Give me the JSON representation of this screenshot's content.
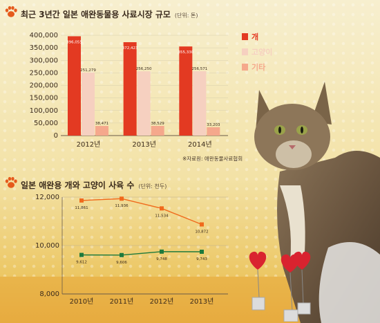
{
  "chart_data": [
    {
      "type": "bar",
      "title": "최근 3년간 일본 애완동물용 사료시장 규모",
      "unit": "(단위: 톤)",
      "categories": [
        "2012년",
        "2013년",
        "2014년"
      ],
      "series": [
        {
          "name": "개",
          "color": "#e33a22",
          "values": [
            396055,
            372423,
            355330
          ],
          "labels": [
            "396,055",
            "372,423",
            "355,330"
          ]
        },
        {
          "name": "고양이",
          "color": "#f6d0c0",
          "values": [
            251279,
            256250,
            256571
          ],
          "labels": [
            "251,279",
            "256,250",
            "256,571"
          ]
        },
        {
          "name": "기타",
          "color": "#f5a88c",
          "values": [
            38471,
            38529,
            33203
          ],
          "labels": [
            "38,471",
            "38,529",
            "33,203"
          ]
        }
      ],
      "yticks": [
        "400,000",
        "350,000",
        "300,000",
        "250,000",
        "200,000",
        "150,000",
        "100,000",
        "50,000",
        "0"
      ],
      "ylim": [
        0,
        400000
      ],
      "source": "※자료원: 애완동물사료협회",
      "legend_placement": "right"
    },
    {
      "type": "line",
      "title": "일본 애완용 개와 고양이 사육 수",
      "unit": "(단위: 천두)",
      "categories": [
        "2010년",
        "2011년",
        "2012년",
        "2013년"
      ],
      "series": [
        {
          "color": "#f06a1c",
          "marker": "square",
          "values": [
            11861,
            11936,
            11534,
            10872
          ],
          "labels": [
            "11,861",
            "11,936",
            "11,534",
            "10,872"
          ]
        },
        {
          "color": "#1e7a3c",
          "marker": "square",
          "values": [
            9612,
            9606,
            9748,
            9743
          ],
          "labels": [
            "9,612",
            "9,606",
            "9,748",
            "9,743"
          ]
        }
      ],
      "yticks": [
        "12,000",
        "10,000",
        "8,000"
      ],
      "ylim": [
        8000,
        12000
      ]
    }
  ]
}
